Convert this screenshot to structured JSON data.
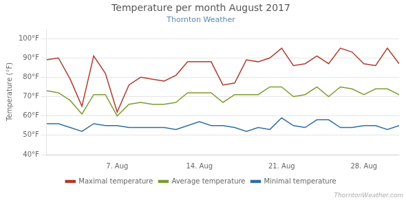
{
  "chart_data": {
    "type": "line",
    "title": "Temperature per month August 2017",
    "subtitle": "Thornton Weather",
    "annotations": [
      "ThorntonWeather.com"
    ],
    "ylabel": "Temperature (°F)",
    "x": [
      1,
      2,
      3,
      4,
      5,
      6,
      7,
      8,
      9,
      10,
      11,
      12,
      13,
      14,
      15,
      16,
      17,
      18,
      19,
      20,
      21,
      22,
      23,
      24,
      25,
      26,
      27,
      28,
      29,
      30,
      31
    ],
    "series": [
      {
        "name": "Maximal temperature",
        "color": "#b03a2e",
        "values": [
          89,
          90,
          79,
          65,
          91,
          82,
          62,
          76,
          80,
          79,
          78,
          81,
          88,
          88,
          88,
          76,
          77,
          89,
          88,
          90,
          95,
          86,
          87,
          91,
          87,
          95,
          93,
          87,
          86,
          95,
          87
        ]
      },
      {
        "name": "Average temperature",
        "color": "#7d9b2f",
        "values": [
          73,
          72,
          68,
          61,
          71,
          71,
          60,
          66,
          67,
          66,
          66,
          67,
          72,
          72,
          72,
          67,
          71,
          71,
          71,
          75,
          75,
          70,
          71,
          75,
          70,
          75,
          74,
          71,
          74,
          74,
          71
        ]
      },
      {
        "name": "Minimal temperature",
        "color": "#2e6da4",
        "values": [
          56,
          56,
          54,
          52,
          56,
          55,
          55,
          54,
          54,
          54,
          54,
          53,
          55,
          57,
          55,
          55,
          54,
          52,
          54,
          53,
          59,
          55,
          54,
          58,
          58,
          54,
          54,
          55,
          55,
          53,
          55
        ]
      }
    ],
    "xlim": [
      1,
      31
    ],
    "xticks": [
      {
        "value": 7,
        "label": "7. Aug"
      },
      {
        "value": 14,
        "label": "14. Aug"
      },
      {
        "value": 21,
        "label": "21. Aug"
      },
      {
        "value": 28,
        "label": "28. Aug"
      }
    ],
    "ylim": [
      40,
      105
    ],
    "yticks": [
      {
        "value": 40,
        "label": "40°F"
      },
      {
        "value": 50,
        "label": "50°F"
      },
      {
        "value": 60,
        "label": "60°F"
      },
      {
        "value": 70,
        "label": "70°F"
      },
      {
        "value": 80,
        "label": "80°F"
      },
      {
        "value": 90,
        "label": "90°F"
      },
      {
        "value": 100,
        "label": "100°F"
      }
    ],
    "grid": "y",
    "legend": "bottom"
  }
}
